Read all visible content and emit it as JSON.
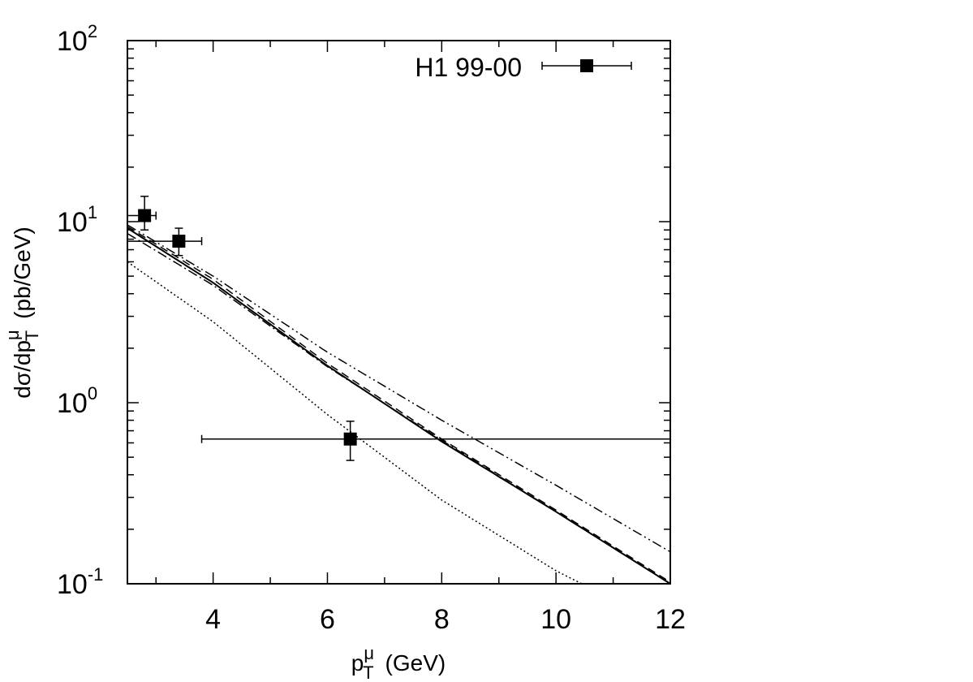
{
  "chart_data": {
    "type": "line",
    "title": "",
    "xlabel": {
      "base": "p",
      "sup": "μ",
      "sub": "T",
      "unit": "(GeV)"
    },
    "ylabel": {
      "text": "dσ/dp",
      "sup": "μ",
      "sub": "T",
      "unit": "(pb/GeV)"
    },
    "xlim": [
      2.5,
      12
    ],
    "ylim": [
      0.1,
      100
    ],
    "yscale": "log",
    "grid": false,
    "legend_position": "top-right",
    "x_ticks": [
      {
        "value": 4,
        "label": "4"
      },
      {
        "value": 6,
        "label": "6"
      },
      {
        "value": 8,
        "label": "8"
      },
      {
        "value": 10,
        "label": "10"
      },
      {
        "value": 12,
        "label": "12"
      }
    ],
    "y_ticks": [
      {
        "value": 0.1,
        "base": "10",
        "exp": "-1"
      },
      {
        "value": 1,
        "base": "10",
        "exp": "0"
      },
      {
        "value": 10,
        "base": "10",
        "exp": "1"
      },
      {
        "value": 100,
        "base": "10",
        "exp": "2"
      }
    ],
    "data_points": {
      "name": "H1 99-00",
      "points": [
        {
          "x": 2.8,
          "y": 10.8,
          "xerr": [
            2.5,
            3.0
          ],
          "yerr": [
            9.0,
            13.8
          ]
        },
        {
          "x": 3.4,
          "y": 7.8,
          "xerr": [
            2.5,
            3.8
          ],
          "yerr": [
            6.5,
            9.2
          ]
        },
        {
          "x": 6.4,
          "y": 0.63,
          "xerr": [
            3.8,
            12.0
          ],
          "yerr": [
            0.48,
            0.79
          ]
        }
      ]
    },
    "curves": [
      {
        "style": "solid",
        "x": [
          2.5,
          4,
          6,
          8,
          10,
          12
        ],
        "y": [
          9.2,
          4.6,
          1.6,
          0.61,
          0.25,
          0.1
        ]
      },
      {
        "style": "dashed",
        "x": [
          2.5,
          4,
          6,
          8,
          10,
          12
        ],
        "y": [
          9.4,
          4.8,
          1.65,
          0.63,
          0.255,
          0.102
        ]
      },
      {
        "style": "dashdot",
        "x": [
          2.5,
          4,
          6,
          8,
          10,
          12
        ],
        "y": [
          8.6,
          4.45,
          1.58,
          0.62,
          0.25,
          0.1
        ]
      },
      {
        "style": "dashdotdot",
        "x": [
          2.5,
          4,
          6,
          8,
          10,
          12
        ],
        "y": [
          9.6,
          5.0,
          1.9,
          0.8,
          0.35,
          0.15
        ]
      },
      {
        "style": "dotted",
        "x": [
          2.5,
          4,
          6,
          8,
          10,
          10.45
        ],
        "y": [
          6.0,
          2.8,
          0.86,
          0.29,
          0.118,
          0.1
        ]
      }
    ]
  }
}
